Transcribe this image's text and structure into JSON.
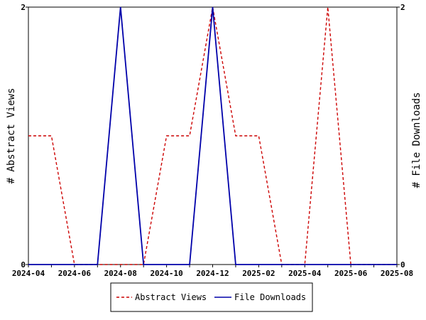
{
  "chart_data": {
    "type": "line",
    "x": [
      "2024-04",
      "2024-05",
      "2024-06",
      "2024-07",
      "2024-08",
      "2024-09",
      "2024-10",
      "2024-11",
      "2024-12",
      "2025-01",
      "2025-02",
      "2025-03",
      "2025-04",
      "2025-05",
      "2025-06",
      "2025-07",
      "2025-08"
    ],
    "x_ticks": [
      "2024-04",
      "2024-06",
      "2024-08",
      "2024-10",
      "2024-12",
      "2025-02",
      "2025-04",
      "2025-06",
      "2025-08"
    ],
    "series": [
      {
        "name": "Abstract Views",
        "axis": "left",
        "color": "#cc0000",
        "dash": "dashed",
        "values": [
          1,
          1,
          0,
          0,
          0,
          0,
          1,
          1,
          2,
          1,
          1,
          0,
          0,
          2,
          0,
          0,
          0
        ]
      },
      {
        "name": "File Downloads",
        "axis": "right",
        "color": "#0000aa",
        "dash": "solid",
        "values": [
          0,
          0,
          0,
          0,
          2,
          0,
          0,
          0,
          2,
          0,
          0,
          0,
          0,
          0,
          0,
          0,
          0
        ]
      }
    ],
    "ylabel_left": "# Abstract Views",
    "ylabel_right": "# File Downloads",
    "ylim_left": [
      0,
      2
    ],
    "ylim_right": [
      0,
      2
    ],
    "y_ticks_left": [
      "0",
      "2"
    ],
    "y_ticks_right": [
      "0",
      "2"
    ],
    "legend_position": "bottom",
    "grid": false
  }
}
